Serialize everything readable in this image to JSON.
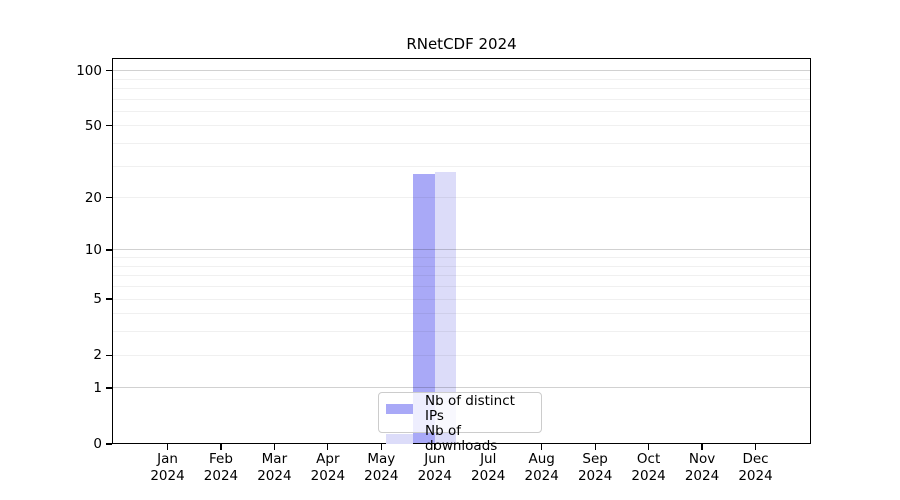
{
  "figure": {
    "background": "#ffffff"
  },
  "chart_data": {
    "type": "bar",
    "title": "RNetCDF 2024",
    "xlabel": "",
    "ylabel": "",
    "scale": "log10(1+x)",
    "ylim": [
      0,
      117
    ],
    "yticks": [
      0,
      1,
      2,
      5,
      10,
      20,
      50,
      100
    ],
    "gridlines": {
      "major": [
        1,
        10,
        100
      ],
      "minor": [
        2,
        3,
        4,
        5,
        6,
        7,
        8,
        9,
        20,
        30,
        40,
        50,
        60,
        70,
        80,
        90
      ]
    },
    "categories": [
      "Jan",
      "Feb",
      "Mar",
      "Apr",
      "May",
      "Jun",
      "Jul",
      "Aug",
      "Sep",
      "Oct",
      "Nov",
      "Dec"
    ],
    "xtick_year": "2024",
    "series": [
      {
        "name": "Nb of distinct IPs",
        "color": "#a9a9f7",
        "values": [
          0,
          0,
          0,
          0,
          0,
          27,
          0,
          0,
          0,
          0,
          0,
          0
        ]
      },
      {
        "name": "Nb of downloads",
        "color": "#dcdcf9",
        "values": [
          0,
          0,
          0,
          0,
          0,
          28,
          0,
          0,
          0,
          0,
          0,
          0
        ]
      }
    ],
    "legend": {
      "position": "bottom-center-inside",
      "labels": [
        "Nb of distinct IPs",
        "Nb of downloads"
      ],
      "border_color": "#cccccc",
      "background": "rgba(255,255,255,0.8)"
    },
    "axis_colors": {
      "spine": "#000000",
      "tick": "#000000",
      "text": "#000000",
      "grid_major": "rgba(0,0,0,0.18)",
      "grid_minor": "rgba(0,0,0,0.06)"
    }
  }
}
